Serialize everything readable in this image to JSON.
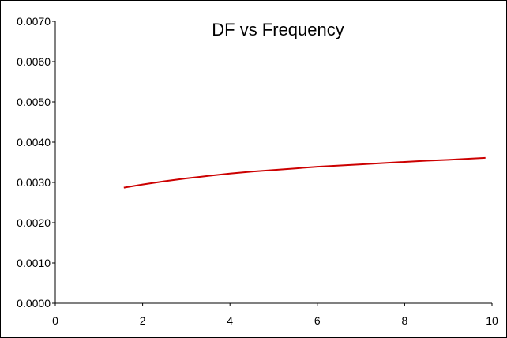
{
  "chart_data": {
    "type": "line",
    "title": "DF vs Frequency",
    "xlabel": "",
    "ylabel": "",
    "xlim": [
      0,
      10
    ],
    "ylim": [
      0,
      0.007
    ],
    "x_ticks": [
      0,
      2,
      4,
      6,
      8,
      10
    ],
    "x_tick_labels": [
      "0",
      "2",
      "4",
      "6",
      "8",
      "10"
    ],
    "y_ticks": [
      0,
      0.001,
      0.002,
      0.003,
      0.004,
      0.005,
      0.006,
      0.007
    ],
    "y_tick_labels": [
      "0.0000",
      "0.0010",
      "0.0020",
      "0.0030",
      "0.0040",
      "0.0050",
      "0.0060",
      "0.0070"
    ],
    "grid": false,
    "legend": "none",
    "series": [
      {
        "color": "#cc0000",
        "x": [
          1.57,
          2,
          2.5,
          3,
          3.5,
          4,
          4.5,
          5,
          5.5,
          6,
          6.5,
          7,
          7.5,
          8,
          8.5,
          9,
          9.5,
          9.85
        ],
        "y": [
          0.00287,
          0.00295,
          0.00303,
          0.0031,
          0.00316,
          0.00322,
          0.00327,
          0.00331,
          0.00335,
          0.00339,
          0.00342,
          0.00345,
          0.00348,
          0.00351,
          0.00354,
          0.00356,
          0.00359,
          0.00361
        ]
      }
    ]
  }
}
